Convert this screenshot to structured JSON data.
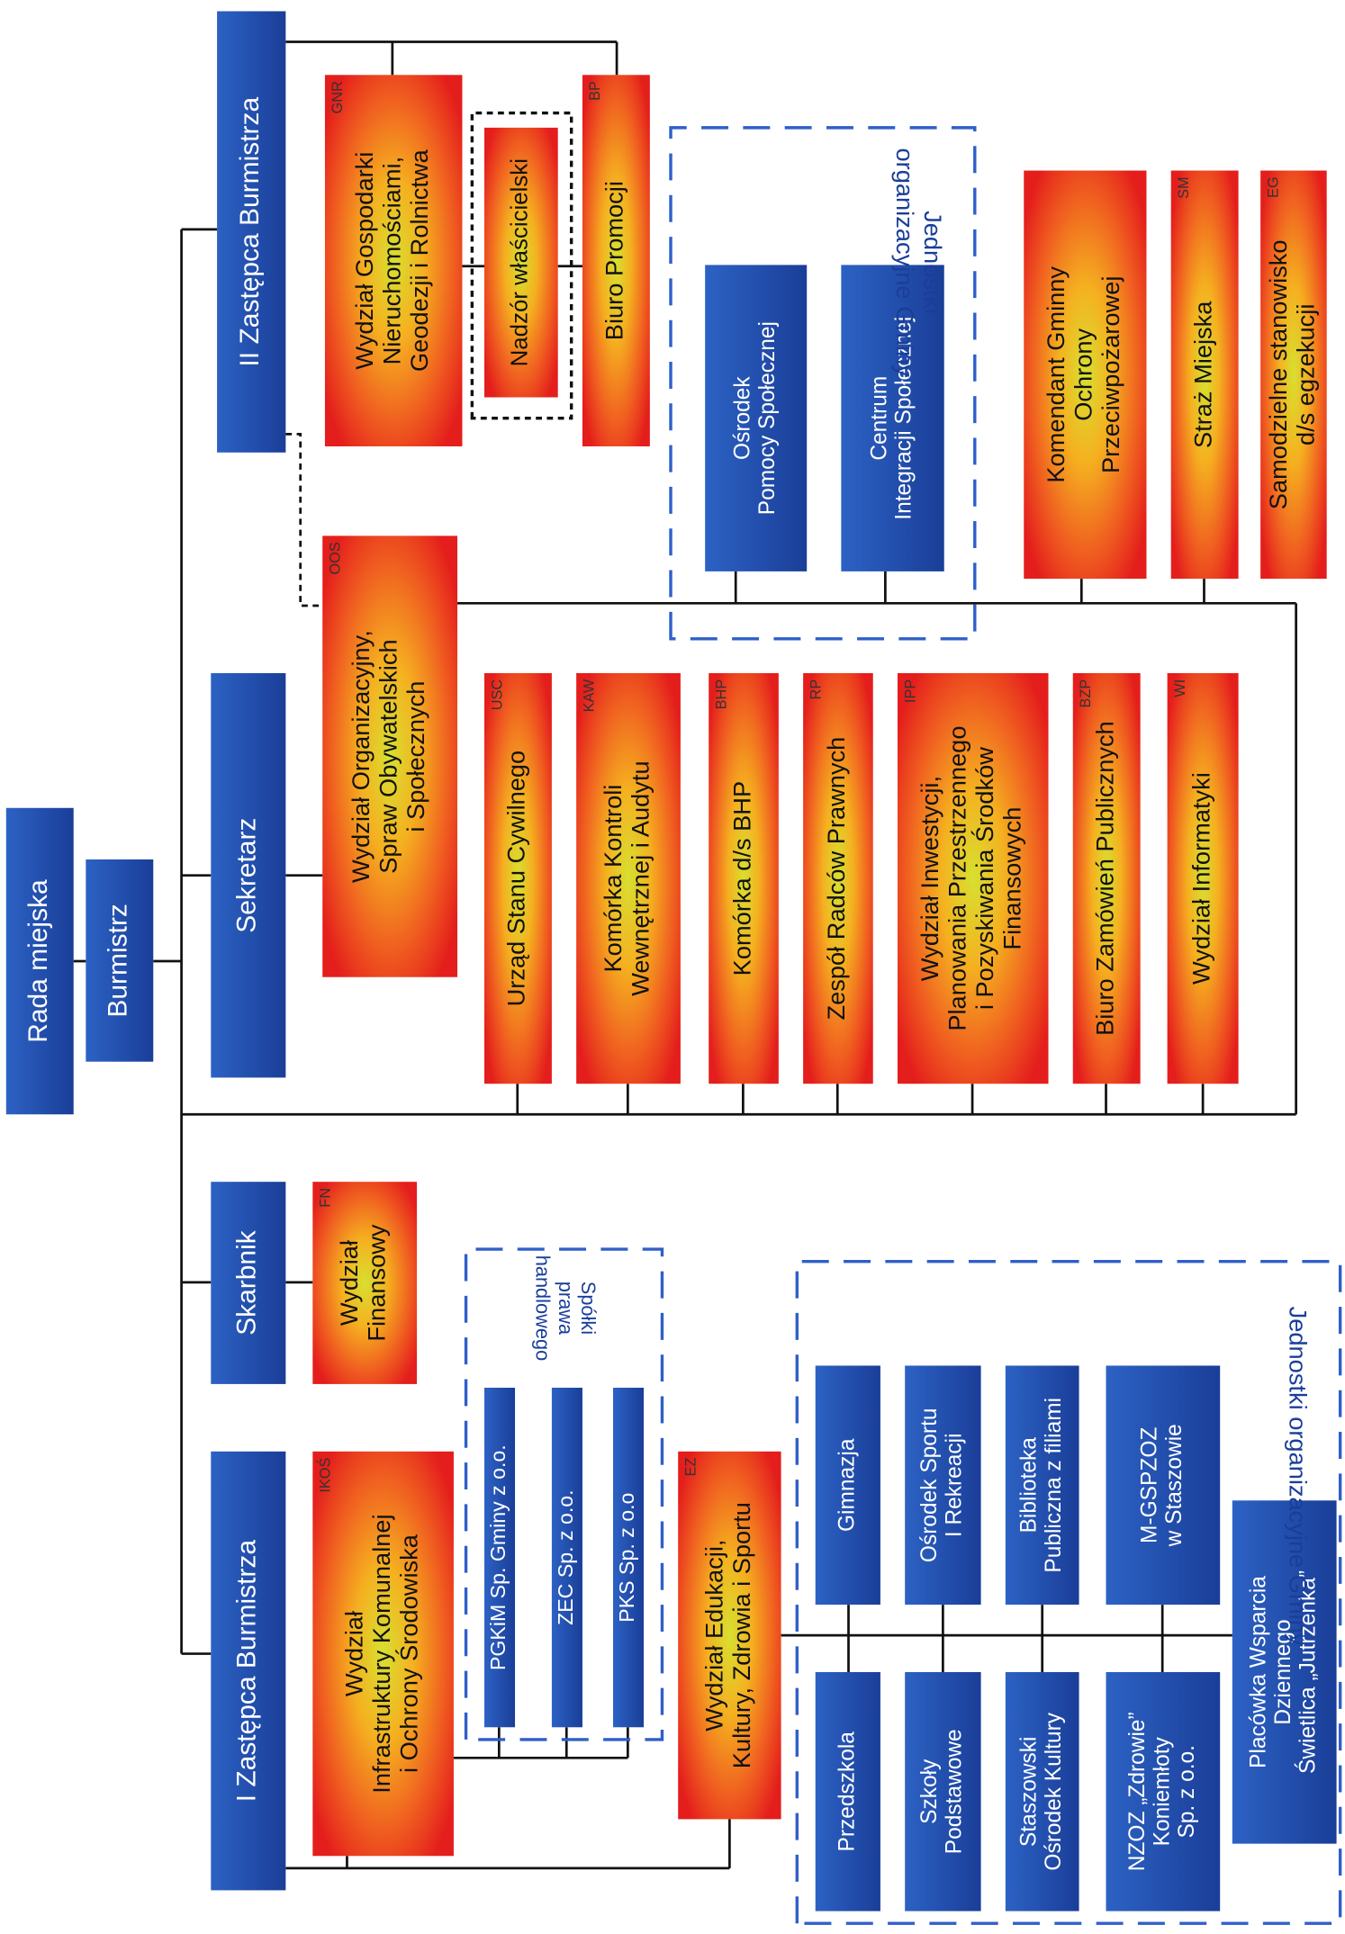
{
  "nodes": [
    {
      "label": [
        "Rada miejska"
      ]
    },
    {
      "label": [
        "Burmistrz"
      ]
    },
    {
      "label": [
        "I Zastępca Burmistrza"
      ]
    },
    {
      "label": [
        "Skarbnik"
      ]
    },
    {
      "label": [
        "Sekretarz"
      ]
    },
    {
      "label": [
        "II Zastępca Burmistrza"
      ]
    },
    {
      "label": [
        "Wydział",
        "Infrastruktury Komunalnej",
        "i Ochrony Środowiska"
      ],
      "code": "IKOŚ"
    },
    {
      "label": [
        "Wydział",
        "Finansowy"
      ],
      "code": "FN"
    },
    {
      "label": [
        "Wydział Organizacyjny,",
        "Spraw Obywatelskich",
        "i Społecznych"
      ],
      "code": "OOS"
    },
    {
      "label": [
        "Wydział Gospodarki",
        "Nieruchomościami,",
        "Geodezji i Rolnictwa"
      ],
      "code": "GNR"
    },
    {
      "label": [
        "Nadzór właścicielski"
      ]
    },
    {
      "label": [
        "Biuro Promocji"
      ],
      "code": "BP"
    },
    {
      "label": [
        "PGKiM Sp. Gminy z o.o."
      ]
    },
    {
      "label": [
        "ZEC Sp. z o.o."
      ]
    },
    {
      "label": [
        "PKS Sp. z o.o"
      ]
    },
    {
      "label": [
        "Wydział Edukacji,",
        "Kultury, Zdrowia i Sportu"
      ],
      "code": "EZ"
    },
    {
      "label": [
        "Gimnazja"
      ]
    },
    {
      "label": [
        "Ośrodek Sportu",
        "I Rekreacji"
      ]
    },
    {
      "label": [
        "Biblioteka",
        "Publiczna z filiami"
      ]
    },
    {
      "label": [
        "M-GSPZOZ",
        "w Staszowie"
      ]
    },
    {
      "label": [
        "Przedszkola"
      ]
    },
    {
      "label": [
        "Szkoły",
        "Podstawowe"
      ]
    },
    {
      "label": [
        "Staszowski",
        "Ośrodek Kultury"
      ]
    },
    {
      "label": [
        "NZOZ „Zdrowie”",
        "Koniemłoty",
        "Sp. z o.o."
      ]
    },
    {
      "label": [
        "Placówka Wsparcia",
        "Dziennego",
        "Świetlica „Jutrzenka”"
      ]
    },
    {
      "label": [
        "Urząd Stanu Cywilnego"
      ],
      "code": "USC"
    },
    {
      "label": [
        "Komórka Kontroli",
        "Wewnętrznej i Audytu"
      ],
      "code": "KAW"
    },
    {
      "label": [
        "Komórka d/s BHP"
      ],
      "code": "BHP"
    },
    {
      "label": [
        "Zespół Radców Prawnych"
      ],
      "code": "RP"
    },
    {
      "label": [
        "Wydział Inwestycji,",
        "Planowania Przestrzennego",
        "i Pozyskiwania Środków",
        "Finansowych"
      ],
      "code": "IPP"
    },
    {
      "label": [
        "Biuro Zamówień Publicznych"
      ],
      "code": "BZP"
    },
    {
      "label": [
        "Wydział Informatyki"
      ],
      "code": "WI"
    },
    {
      "label": [
        "Ośrodek",
        "Pomocy Społecznej"
      ]
    },
    {
      "label": [
        "Centrum",
        "Integracji Społecznej"
      ]
    },
    {
      "label": [
        "Komendant Gminny",
        "Ochrony",
        "Przeciwpożarowej"
      ]
    },
    {
      "label": [
        "Straż Miejska"
      ],
      "code": "SM"
    },
    {
      "label": [
        "Samodzielne stanowisko",
        "d/s egzekucji"
      ],
      "code": "EG"
    }
  ],
  "groups": [
    {
      "label": [
        "Spółki",
        "prawa",
        "handlowego"
      ]
    },
    {
      "label": [
        "Jednostki organizacyjne Gminy"
      ]
    },
    {
      "label": [
        "Jednostki",
        "organizacyjne Gminy"
      ]
    }
  ]
}
